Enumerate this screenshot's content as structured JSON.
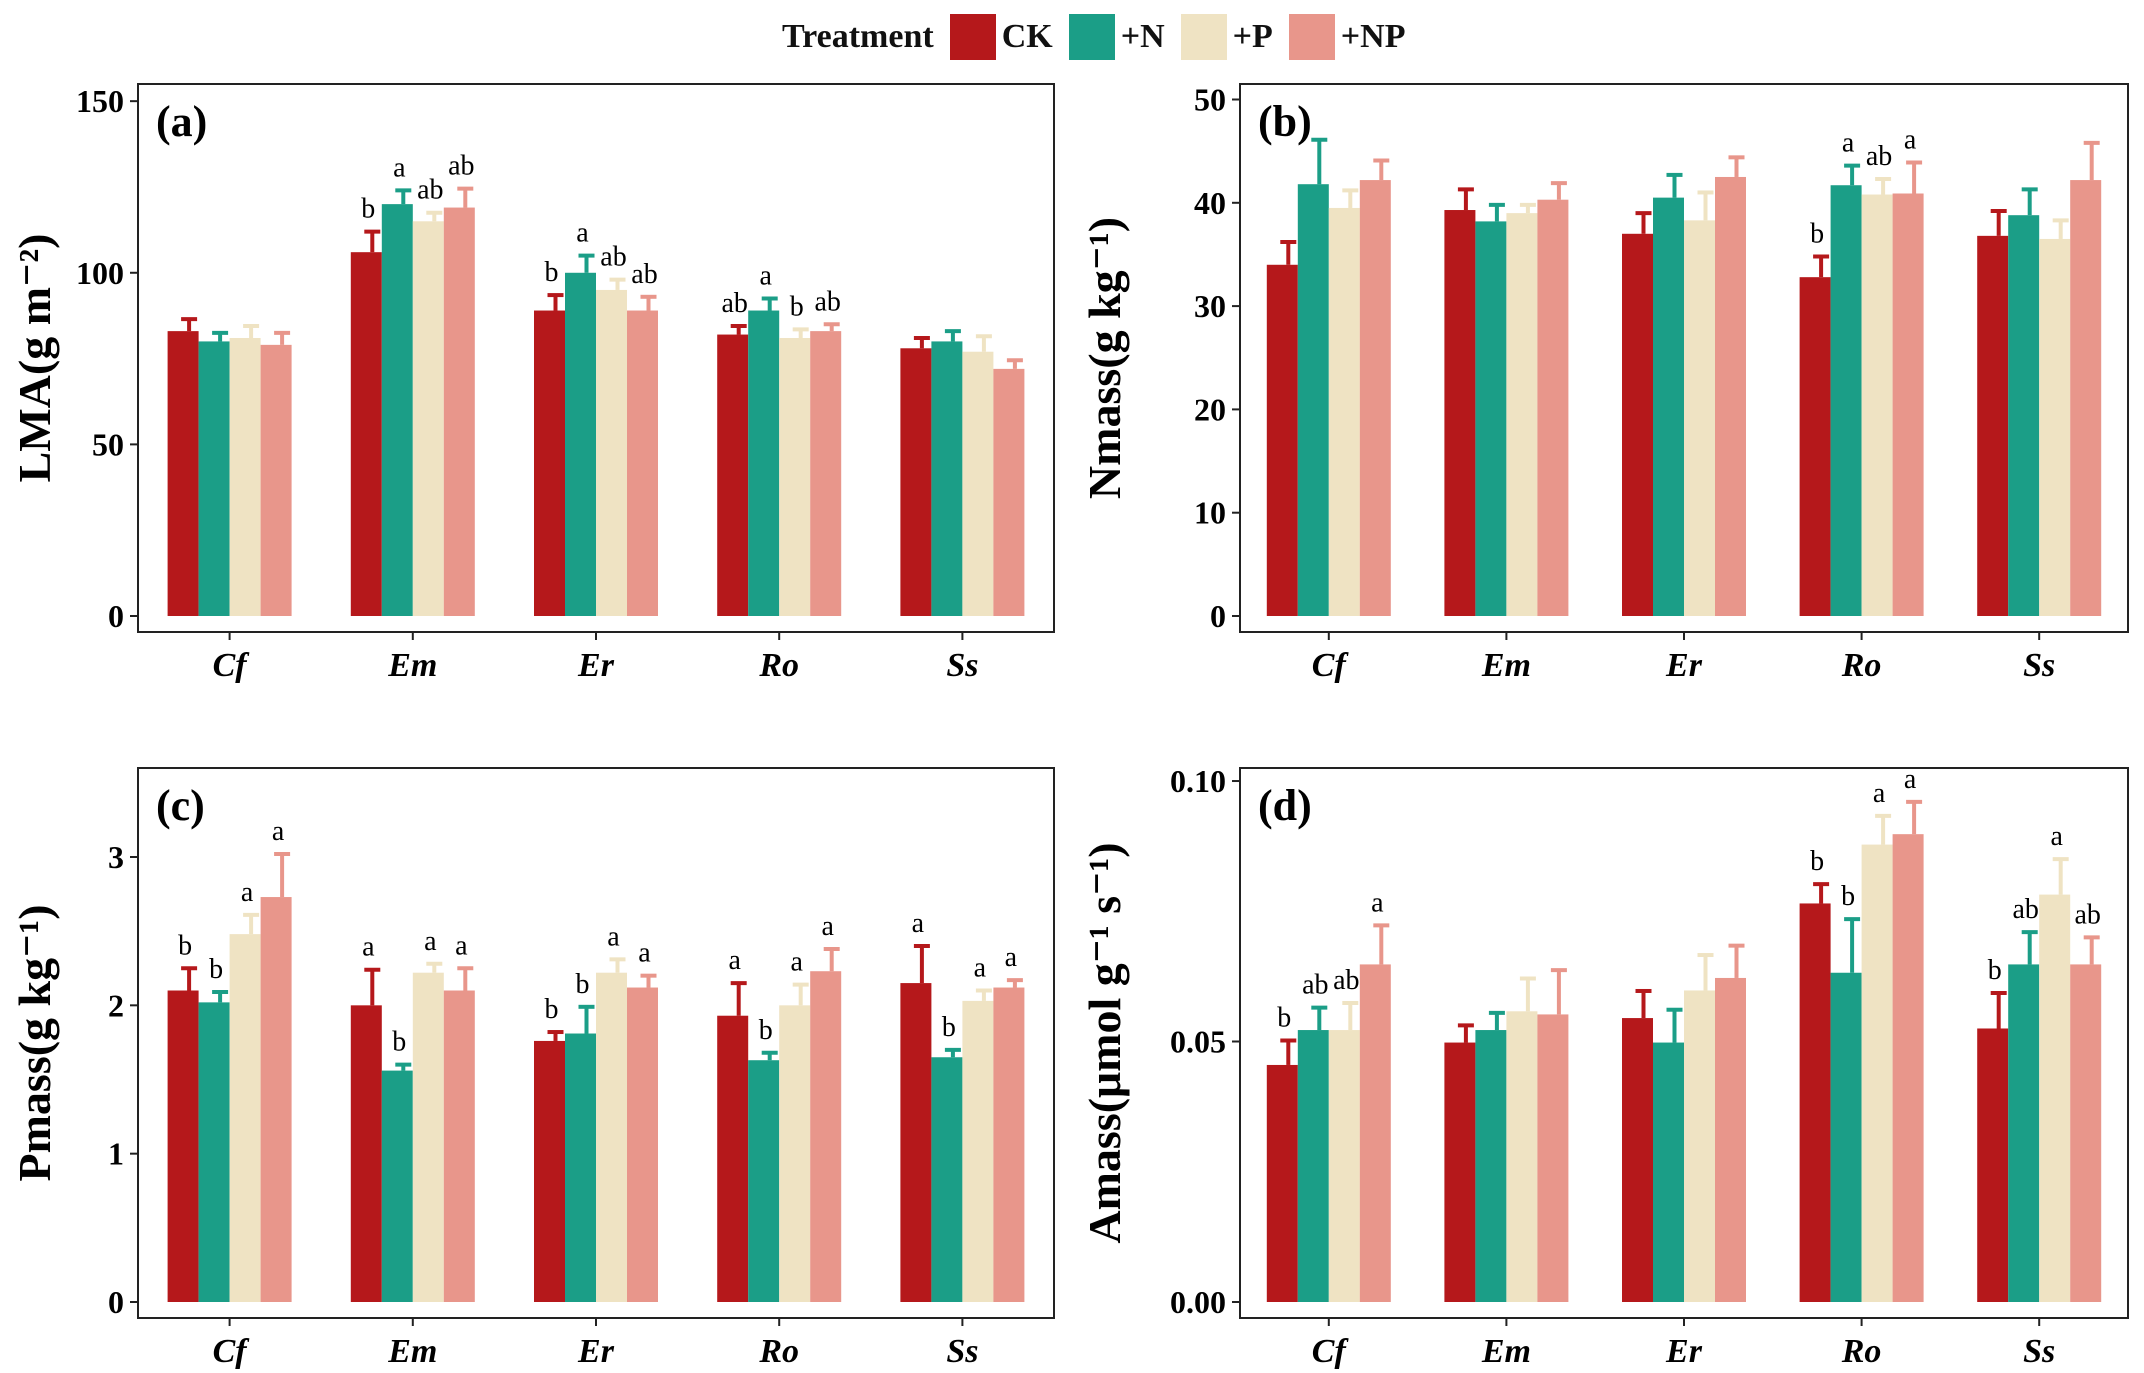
{
  "legend": {
    "title": "Treatment",
    "items": [
      {
        "label": "CK",
        "color": "#b5181b"
      },
      {
        "label": "+N",
        "color": "#1b9e87"
      },
      {
        "label": "+P",
        "color": "#efe3c3"
      },
      {
        "label": "+NP",
        "color": "#e8968b"
      }
    ]
  },
  "chart_data": [
    {
      "type": "bar",
      "panel_label": "(a)",
      "ylabel": "LMA(g m⁻²)",
      "categories": [
        "Cf",
        "Em",
        "Er",
        "Ro",
        "Ss"
      ],
      "ylim": [
        0,
        155
      ],
      "yticks": [
        0,
        50,
        100,
        150
      ],
      "ytick_labels": [
        "0",
        "50",
        "100",
        "150"
      ],
      "series": [
        {
          "name": "CK",
          "values": [
            83,
            106,
            89,
            82,
            78
          ],
          "errors": [
            3.5,
            6,
            4.5,
            2.5,
            3
          ],
          "letters": [
            "",
            "b",
            "b",
            "ab",
            ""
          ]
        },
        {
          "name": "+N",
          "values": [
            80,
            120,
            100,
            89,
            80
          ],
          "errors": [
            2.5,
            4,
            5,
            3.5,
            3
          ],
          "letters": [
            "",
            "a",
            "a",
            "a",
            ""
          ]
        },
        {
          "name": "+P",
          "values": [
            81,
            115,
            95,
            81,
            77
          ],
          "errors": [
            3.5,
            2.5,
            3,
            2.5,
            4.5
          ],
          "letters": [
            "",
            "ab",
            "ab",
            "b",
            ""
          ]
        },
        {
          "name": "+NP",
          "values": [
            79,
            119,
            89,
            83,
            72
          ],
          "errors": [
            3.5,
            5.5,
            4,
            2,
            2.5
          ],
          "letters": [
            "",
            "ab",
            "ab",
            "ab",
            ""
          ]
        }
      ]
    },
    {
      "type": "bar",
      "panel_label": "(b)",
      "ylabel": "Nmass(g kg⁻¹)",
      "categories": [
        "Cf",
        "Em",
        "Er",
        "Ro",
        "Ss"
      ],
      "ylim": [
        0,
        51.5
      ],
      "yticks": [
        0,
        10,
        20,
        30,
        40,
        50
      ],
      "ytick_labels": [
        "0",
        "10",
        "20",
        "30",
        "40",
        "50"
      ],
      "series": [
        {
          "name": "CK",
          "values": [
            34,
            39.3,
            37,
            32.8,
            36.8
          ],
          "errors": [
            2.2,
            2,
            2,
            2,
            2.4
          ],
          "letters": [
            "",
            "",
            "",
            "b",
            ""
          ]
        },
        {
          "name": "+N",
          "values": [
            41.8,
            38.2,
            40.5,
            41.7,
            38.8
          ],
          "errors": [
            4.3,
            1.6,
            2.2,
            1.9,
            2.5
          ],
          "letters": [
            "",
            "",
            "",
            "a",
            ""
          ]
        },
        {
          "name": "+P",
          "values": [
            39.5,
            39,
            38.3,
            40.8,
            36.5
          ],
          "errors": [
            1.7,
            0.8,
            2.7,
            1.5,
            1.8
          ],
          "letters": [
            "",
            "",
            "",
            "ab",
            ""
          ]
        },
        {
          "name": "+NP",
          "values": [
            42.2,
            40.3,
            42.5,
            40.9,
            42.2
          ],
          "errors": [
            1.9,
            1.6,
            1.9,
            3,
            3.6
          ],
          "letters": [
            "",
            "",
            "",
            "a",
            ""
          ]
        }
      ]
    },
    {
      "type": "bar",
      "panel_label": "(c)",
      "ylabel": "Pmass(g kg⁻¹)",
      "categories": [
        "Cf",
        "Em",
        "Er",
        "Ro",
        "Ss"
      ],
      "ylim": [
        0,
        3.6
      ],
      "yticks": [
        0,
        1,
        2,
        3
      ],
      "ytick_labels": [
        "0",
        "1",
        "2",
        "3"
      ],
      "series": [
        {
          "name": "CK",
          "values": [
            2.1,
            2.0,
            1.76,
            1.93,
            2.15
          ],
          "errors": [
            0.15,
            0.24,
            0.06,
            0.22,
            0.25
          ],
          "letters": [
            "b",
            "a",
            "b",
            "a",
            "a"
          ]
        },
        {
          "name": "+N",
          "values": [
            2.02,
            1.56,
            1.81,
            1.63,
            1.65
          ],
          "errors": [
            0.07,
            0.04,
            0.18,
            0.05,
            0.05
          ],
          "letters": [
            "b",
            "b",
            "b",
            "b",
            "b"
          ]
        },
        {
          "name": "+P",
          "values": [
            2.48,
            2.22,
            2.22,
            2.0,
            2.03
          ],
          "errors": [
            0.13,
            0.06,
            0.09,
            0.14,
            0.07
          ],
          "letters": [
            "a",
            "a",
            "a",
            "a",
            "a"
          ]
        },
        {
          "name": "+NP",
          "values": [
            2.73,
            2.1,
            2.12,
            2.23,
            2.12
          ],
          "errors": [
            0.29,
            0.15,
            0.08,
            0.15,
            0.05
          ],
          "letters": [
            "a",
            "a",
            "a",
            "a",
            "a"
          ]
        }
      ]
    },
    {
      "type": "bar",
      "panel_label": "(d)",
      "ylabel": "Amass(μmol g⁻¹ s⁻¹)",
      "categories": [
        "Cf",
        "Em",
        "Er",
        "Ro",
        "Ss"
      ],
      "ylim": [
        0,
        0.1025
      ],
      "yticks": [
        0,
        0.05,
        0.1
      ],
      "ytick_labels": [
        "0.00",
        "0.05",
        "0.10"
      ],
      "series": [
        {
          "name": "CK",
          "values": [
            0.0455,
            0.0498,
            0.0545,
            0.0765,
            0.0525
          ],
          "errors": [
            0.0047,
            0.0033,
            0.0052,
            0.0037,
            0.0068
          ],
          "letters": [
            "b",
            "",
            "",
            "b",
            "b"
          ]
        },
        {
          "name": "+N",
          "values": [
            0.0522,
            0.0522,
            0.0498,
            0.0632,
            0.0648
          ],
          "errors": [
            0.0043,
            0.0033,
            0.0063,
            0.0103,
            0.0062
          ],
          "letters": [
            "ab",
            "",
            "",
            "b",
            "ab"
          ]
        },
        {
          "name": "+P",
          "values": [
            0.0522,
            0.0558,
            0.0598,
            0.0878,
            0.0782
          ],
          "errors": [
            0.0052,
            0.0063,
            0.0068,
            0.0055,
            0.0068
          ],
          "letters": [
            "ab",
            "",
            "",
            "a",
            "a"
          ]
        },
        {
          "name": "+NP",
          "values": [
            0.0648,
            0.0552,
            0.0622,
            0.0898,
            0.0648
          ],
          "errors": [
            0.0075,
            0.0085,
            0.0062,
            0.0062,
            0.0052
          ],
          "letters": [
            "a",
            "",
            "",
            "a",
            "ab"
          ]
        }
      ]
    }
  ]
}
